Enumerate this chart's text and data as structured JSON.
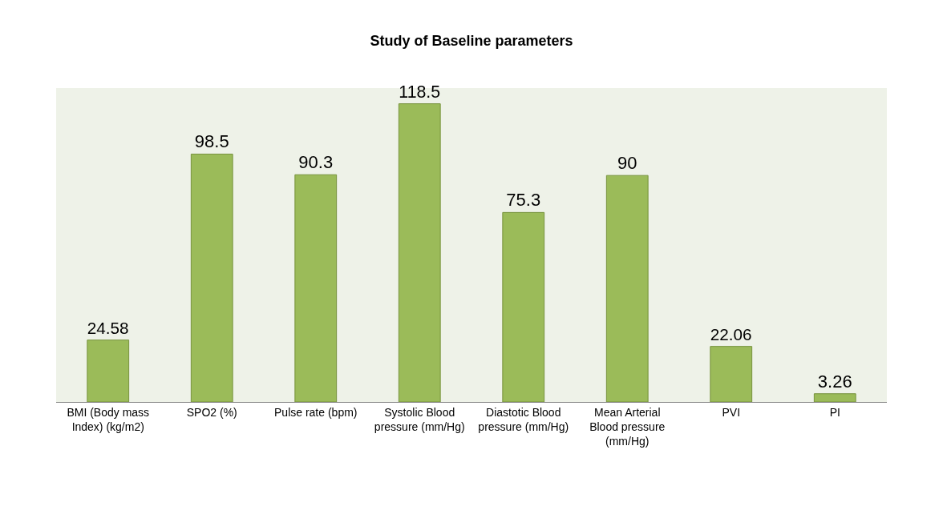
{
  "chart_data": {
    "type": "bar",
    "title": "Study of Baseline parameters",
    "categories": [
      "BMI (Body mass Index) (kg/m2)",
      "SPO2 (%)",
      "Pulse rate (bpm)",
      "Systolic Blood pressure (mm/Hg)",
      "Diastotic Blood pressure (mm/Hg)",
      "Mean Arterial Blood pressure (mm/Hg)",
      "PVI",
      "PI"
    ],
    "values": [
      24.58,
      98.5,
      90.3,
      118.5,
      75.3,
      90,
      22.06,
      3.26
    ],
    "color": "#9bbb59",
    "data_labels": true,
    "grid": false,
    "legend": false
  }
}
